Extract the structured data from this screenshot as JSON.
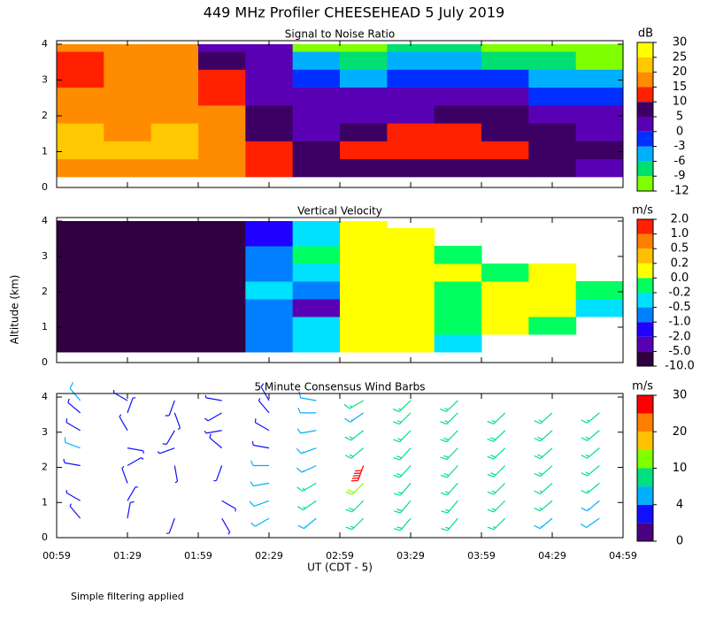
{
  "title": "449 MHz Profiler CHEESEHEAD  5 July 2019",
  "ylabel": "Altitude (km)",
  "xlabel": "UT  (CDT - 5)",
  "footnote": "Simple filtering applied",
  "xlim": [
    0.9833,
    4.9833
  ],
  "xticks": [
    {
      "value": 0.9833,
      "label": "00:59"
    },
    {
      "value": 1.4833,
      "label": "01:29"
    },
    {
      "value": 1.9833,
      "label": "01:59"
    },
    {
      "value": 2.4833,
      "label": "02:29"
    },
    {
      "value": 2.9833,
      "label": "02:59"
    },
    {
      "value": 3.4833,
      "label": "03:29"
    },
    {
      "value": 3.9833,
      "label": "03:59"
    },
    {
      "value": 4.4833,
      "label": "04:29"
    },
    {
      "value": 4.9833,
      "label": "04:59"
    }
  ],
  "chart_data": [
    {
      "type": "heatmap",
      "title": "Signal to Noise Ratio",
      "ylim": [
        0,
        4
      ],
      "yticks": [
        0,
        1,
        2,
        3,
        4
      ],
      "xbins": [
        0.9833,
        1.3167,
        1.65,
        1.9833,
        2.3167,
        2.65,
        2.9833,
        3.3167,
        3.65,
        3.9833,
        4.3167,
        4.65,
        4.9833
      ],
      "ybins": [
        0.3,
        0.8,
        1.3,
        1.8,
        2.3,
        2.8,
        3.3,
        3.8,
        4.0
      ],
      "z": [
        [
          18,
          18,
          18,
          15,
          10,
          8,
          5,
          5,
          8,
          8,
          5,
          3
        ],
        [
          22,
          20,
          22,
          18,
          10,
          5,
          10,
          12,
          12,
          10,
          8,
          5
        ],
        [
          20,
          18,
          20,
          18,
          8,
          3,
          8,
          12,
          10,
          8,
          5,
          3
        ],
        [
          18,
          18,
          18,
          16,
          5,
          3,
          3,
          3,
          5,
          5,
          3,
          3
        ],
        [
          16,
          18,
          18,
          14,
          3,
          3,
          3,
          2,
          0,
          0,
          -2,
          -2
        ],
        [
          14,
          16,
          18,
          12,
          3,
          -2,
          -5,
          -2,
          -2,
          -3,
          -5,
          -5
        ],
        [
          12,
          18,
          18,
          8,
          3,
          -5,
          -8,
          -5,
          -5,
          -8,
          -8,
          -10
        ],
        [
          16,
          18,
          16,
          3,
          0,
          -10,
          -10,
          -8,
          -8,
          -10,
          -11,
          -11
        ]
      ],
      "colorbar": {
        "unit": "dB",
        "ticks": [
          -12,
          -9,
          -6,
          -3,
          0,
          5,
          10,
          15,
          20,
          25,
          30
        ],
        "colors": [
          "#80ff00",
          "#00e070",
          "#00b0ff",
          "#0030ff",
          "#5a00b4",
          "#3c0064",
          "#ff2000",
          "#ff8c00",
          "#ffc800",
          "#ffff00"
        ]
      }
    },
    {
      "type": "heatmap",
      "title": "Vertical Velocity",
      "ylim": [
        0,
        4
      ],
      "yticks": [
        0,
        1,
        2,
        3,
        4
      ],
      "xbins": [
        0.9833,
        1.3167,
        1.65,
        1.9833,
        2.3167,
        2.65,
        2.9833,
        3.3167,
        3.65,
        3.9833,
        4.3167,
        4.65,
        4.9833
      ],
      "ybins": [
        0.3,
        0.8,
        1.3,
        1.8,
        2.3,
        2.8,
        3.3,
        3.8,
        4.0
      ],
      "z": [
        [
          -7,
          -7,
          -7,
          -7,
          -1,
          -0.3,
          0,
          0.1,
          -0.3,
          null,
          null,
          null
        ],
        [
          -7,
          -7,
          -7,
          -7,
          -0.8,
          -0.4,
          0.1,
          0,
          -0.2,
          0.1,
          -0.1,
          null
        ],
        [
          -7,
          -7,
          -7,
          -7,
          -0.6,
          -3,
          0,
          0.1,
          -0.1,
          0,
          0.1,
          -0.3
        ],
        [
          -7,
          -7,
          -7,
          -7,
          -0.5,
          -1,
          0.1,
          0,
          -0.1,
          0.1,
          0,
          -0.2
        ],
        [
          -7,
          -7,
          -7,
          -7,
          -0.7,
          -0.3,
          0,
          0.1,
          0,
          -0.1,
          0,
          null
        ],
        [
          -7,
          -7,
          -7,
          -7,
          -0.8,
          -0.2,
          0.1,
          0,
          -0.1,
          null,
          null,
          null
        ],
        [
          -7,
          -7,
          -7,
          -7,
          -1.2,
          -0.3,
          0,
          0.1,
          null,
          null,
          null,
          null
        ],
        [
          -7,
          -7,
          -7,
          -7,
          -1.5,
          -0.3,
          0,
          null,
          null,
          null,
          null,
          null
        ]
      ],
      "colorbar": {
        "unit": "m/s",
        "ticks": [
          {
            "value": -10,
            "label": "-10.0"
          },
          {
            "value": -5,
            "label": "-5.0"
          },
          {
            "value": -2,
            "label": "-2.0"
          },
          {
            "value": -1,
            "label": "-1.0"
          },
          -0.5,
          -0.2,
          {
            "value": 0,
            "label": "0.0"
          },
          0.2,
          0.5,
          {
            "value": 1,
            "label": "1.0"
          },
          {
            "value": 2,
            "label": "2.0"
          }
        ],
        "colors": [
          "#300040",
          "#5a00b4",
          "#2000ff",
          "#0080ff",
          "#00e0ff",
          "#00ff60",
          "#ffff00",
          "#ffc000",
          "#ff8000",
          "#ff2000"
        ]
      }
    },
    {
      "type": "barbs",
      "title": "5 Minute Consensus Wind Barbs",
      "ylim": [
        0,
        4
      ],
      "yticks": [
        0,
        1,
        2,
        3,
        4
      ],
      "xbins": [
        0.9833,
        1.3167,
        1.65,
        1.9833,
        2.3167,
        2.65,
        2.9833,
        3.3167,
        3.65,
        3.9833,
        4.3167,
        4.65,
        4.9833
      ],
      "ybins": [
        0.3,
        0.8,
        1.3,
        1.8,
        2.3,
        2.8,
        3.3,
        3.8,
        4.0
      ],
      "z": [
        [
          2,
          3,
          2,
          2,
          4,
          6,
          8,
          9,
          8,
          7,
          6,
          5
        ],
        [
          2,
          2,
          null,
          2,
          5,
          7,
          9,
          9,
          8,
          8,
          7,
          6
        ],
        [
          null,
          2,
          null,
          null,
          4,
          7,
          10,
          8,
          8,
          8,
          7,
          7
        ],
        [
          3,
          2,
          2,
          2,
          4,
          6,
          25,
          9,
          9,
          9,
          8,
          8
        ],
        [
          4,
          2,
          2,
          3,
          3,
          6,
          8,
          9,
          9,
          9,
          9,
          8
        ],
        [
          3,
          2,
          3,
          2,
          3,
          4,
          8,
          8,
          9,
          9,
          9,
          8
        ],
        [
          3,
          2,
          2,
          3,
          2,
          4,
          6,
          8,
          8,
          8,
          8,
          7
        ],
        [
          5,
          2,
          3,
          2,
          3,
          5,
          7,
          7,
          8,
          null,
          null,
          null
        ]
      ],
      "dir": [
        [
          320,
          10,
          200,
          150,
          240,
          230,
          225,
          220,
          220,
          225,
          230,
          235
        ],
        [
          300,
          30,
          null,
          120,
          250,
          235,
          225,
          220,
          220,
          225,
          230,
          230
        ],
        [
          null,
          340,
          null,
          null,
          260,
          240,
          225,
          220,
          222,
          225,
          228,
          230
        ],
        [
          280,
          60,
          170,
          200,
          270,
          245,
          200,
          222,
          222,
          225,
          228,
          230
        ],
        [
          290,
          100,
          250,
          310,
          280,
          250,
          230,
          222,
          224,
          226,
          228,
          230
        ],
        [
          300,
          330,
          210,
          260,
          300,
          260,
          232,
          224,
          224,
          226,
          228,
          230
        ],
        [
          310,
          20,
          160,
          240,
          320,
          270,
          235,
          225,
          225,
          226,
          228,
          230
        ],
        [
          320,
          300,
          200,
          280,
          330,
          280,
          240,
          226,
          226,
          null,
          null,
          null
        ]
      ],
      "colorbar": {
        "unit": "m/s",
        "ticks": [
          0,
          4,
          10,
          20,
          30
        ],
        "colors": [
          "#4b0082",
          "#1010ff",
          "#00b0ff",
          "#00e080",
          "#80ff00",
          "#ffc000",
          "#ff8000",
          "#ff0000"
        ]
      }
    }
  ]
}
